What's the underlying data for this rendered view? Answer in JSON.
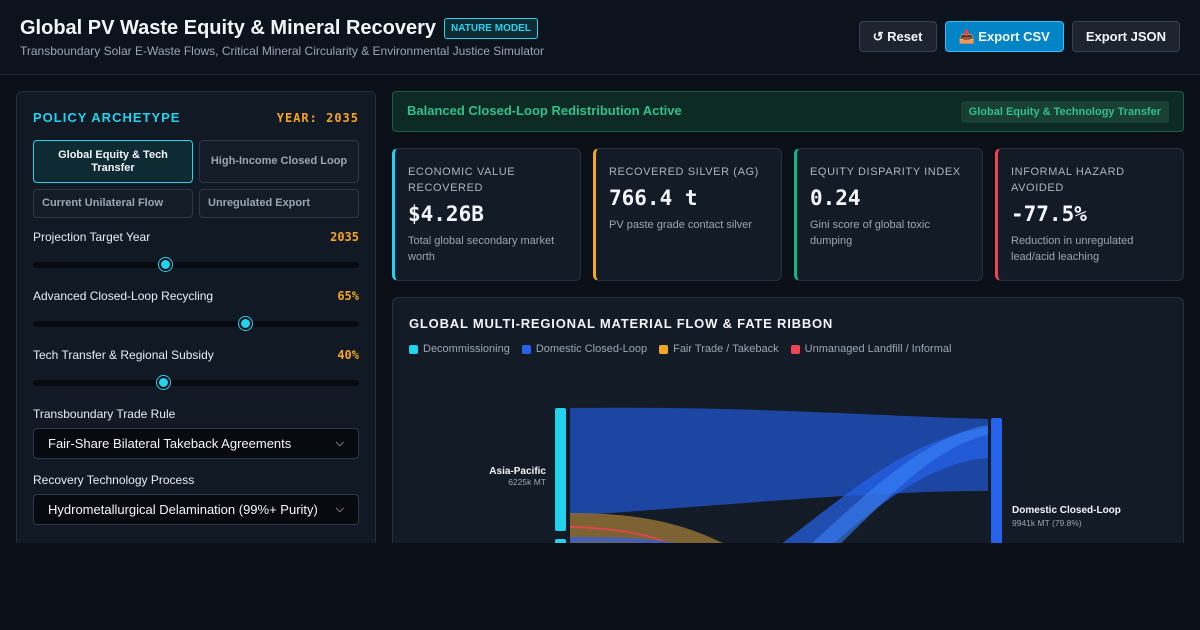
{
  "header": {
    "title": "Global PV Waste Equity & Mineral Recovery",
    "badge": "NATURE MODEL",
    "subtitle": "Transboundary Solar E-Waste Flows, Critical Mineral Circularity & Environmental Justice Simulator",
    "buttons": {
      "reset": "↺ Reset",
      "export_csv": "📥 Export CSV",
      "export_json": "Export JSON"
    }
  },
  "policy": {
    "title": "POLICY ARCHETYPE",
    "year_label": "YEAR: 2035",
    "archetypes": [
      {
        "label": "Global Equity & Tech Transfer",
        "active": true
      },
      {
        "label": "High-Income Closed Loop",
        "active": false
      },
      {
        "label": "Current Unilateral Flow",
        "active": false
      },
      {
        "label": "Unregulated Export",
        "active": false
      }
    ],
    "sliders": [
      {
        "label": "Projection Target Year",
        "value": "2035",
        "fraction": 0.404
      },
      {
        "label": "Advanced Closed-Loop Recycling",
        "value": "65%",
        "fraction": 0.65
      },
      {
        "label": "Tech Transfer & Regional Subsidy",
        "value": "40%",
        "fraction": 0.4
      }
    ],
    "selects": [
      {
        "label": "Transboundary Trade Rule",
        "value": "Fair-Share Bilateral Takeback Agreements"
      },
      {
        "label": "Recovery Technology Process",
        "value": "Hydrometallurgical Delamination (99%+ Purity)"
      }
    ]
  },
  "status": {
    "text": "Balanced Closed-Loop Redistribution Active",
    "tag": "Global Equity & Technology Transfer"
  },
  "kpis": [
    {
      "label": "ECONOMIC VALUE RECOVERED",
      "value": "$4.26B",
      "desc": "Total global secondary market worth",
      "color": "#22d3ee"
    },
    {
      "label": "RECOVERED SILVER (AG)",
      "value": "766.4 t",
      "desc": "PV paste grade contact silver",
      "color": "#f5a623"
    },
    {
      "label": "EQUITY DISPARITY INDEX",
      "value": "0.24",
      "desc": "Gini score of global toxic dumping",
      "color": "#10b981"
    },
    {
      "label": "INFORMAL HAZARD AVOIDED",
      "value": "-77.5%",
      "desc": "Reduction in unregulated lead/acid leaching",
      "color": "#ef4455"
    }
  ],
  "flow": {
    "title": "GLOBAL MULTI-REGIONAL MATERIAL FLOW & FATE RIBBON",
    "legend": [
      {
        "label": "Decommissioning",
        "color": "#22d3ee"
      },
      {
        "label": "Domestic Closed-Loop",
        "color": "#2563eb"
      },
      {
        "label": "Fair Trade / Takeback",
        "color": "#f5a623"
      },
      {
        "label": "Unmanaged Landfill / Informal",
        "color": "#ef4455"
      }
    ],
    "source": {
      "name": "Asia-Pacific",
      "value": "6225k MT"
    },
    "target": {
      "name": "Domestic Closed-Loop",
      "value": "9941k MT (79.8%)"
    }
  }
}
